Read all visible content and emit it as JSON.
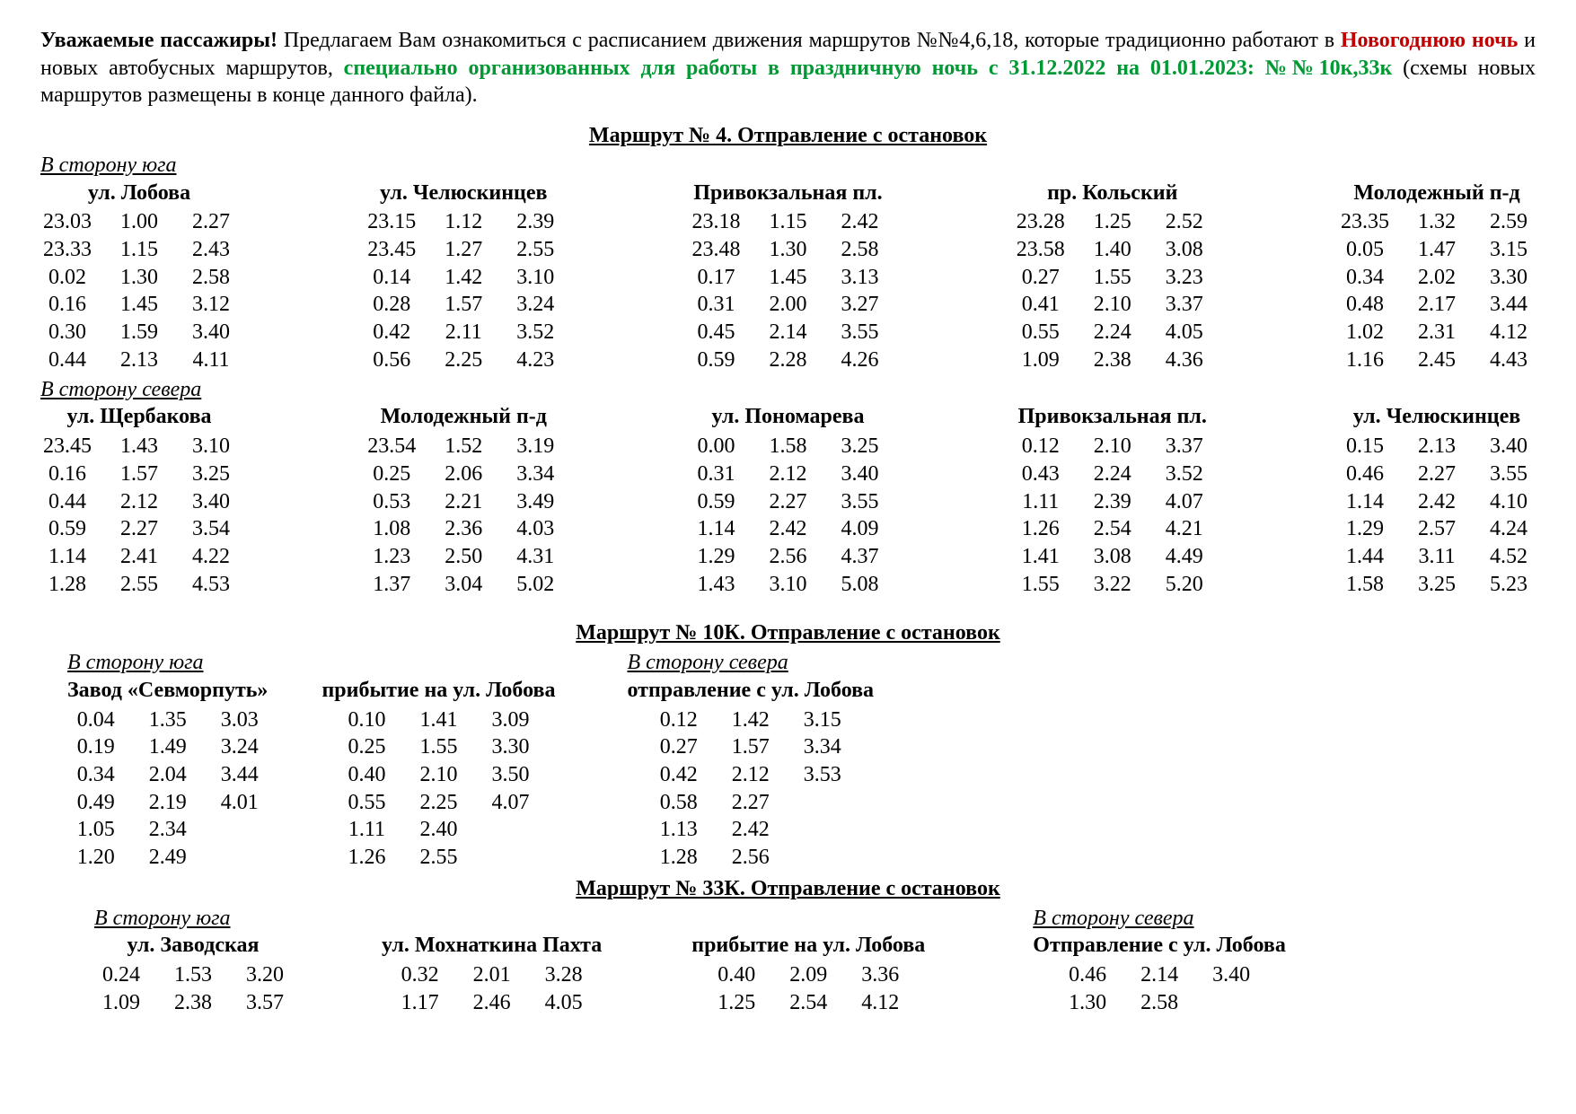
{
  "intro": {
    "lead_bold": "Уважаемые пассажиры!",
    "text_1": " Предлагаем Вам ознакомиться с расписанием движения маршрутов №№4,6,18, которые традиционно работают в ",
    "red_bold": "Новогоднюю ночь",
    "text_2": " и новых автобусных маршрутов, ",
    "green_bold": "специально организованных для работы в праздничную ночь с 31.12.2022 на 01.01.2023:  №№10к,33к",
    "text_3": " (схемы новых маршрутов размещены в конце данного файла)."
  },
  "route4": {
    "title": "Маршрут № 4.  Отправление с остановок",
    "south": {
      "label": "В сторону юга",
      "stops": [
        {
          "name": "ул. Лобова",
          "rows": [
            [
              "23.03",
              "1.00",
              "2.27"
            ],
            [
              "23.33",
              "1.15",
              "2.43"
            ],
            [
              "0.02",
              "1.30",
              "2.58"
            ],
            [
              "0.16",
              "1.45",
              "3.12"
            ],
            [
              "0.30",
              "1.59",
              "3.40"
            ],
            [
              "0.44",
              "2.13",
              "4.11"
            ]
          ]
        },
        {
          "name": "ул. Челюскинцев",
          "rows": [
            [
              "23.15",
              "1.12",
              "2.39"
            ],
            [
              "23.45",
              "1.27",
              "2.55"
            ],
            [
              "0.14",
              "1.42",
              "3.10"
            ],
            [
              "0.28",
              "1.57",
              "3.24"
            ],
            [
              "0.42",
              "2.11",
              "3.52"
            ],
            [
              "0.56",
              "2.25",
              "4.23"
            ]
          ]
        },
        {
          "name": "Привокзальная пл.",
          "rows": [
            [
              "23.18",
              "1.15",
              "2.42"
            ],
            [
              "23.48",
              "1.30",
              "2.58"
            ],
            [
              "0.17",
              "1.45",
              "3.13"
            ],
            [
              "0.31",
              "2.00",
              "3.27"
            ],
            [
              "0.45",
              "2.14",
              "3.55"
            ],
            [
              "0.59",
              "2.28",
              "4.26"
            ]
          ]
        },
        {
          "name": "пр. Кольский",
          "rows": [
            [
              "23.28",
              "1.25",
              "2.52"
            ],
            [
              "23.58",
              "1.40",
              "3.08"
            ],
            [
              "0.27",
              "1.55",
              "3.23"
            ],
            [
              "0.41",
              "2.10",
              "3.37"
            ],
            [
              "0.55",
              "2.24",
              "4.05"
            ],
            [
              "1.09",
              "2.38",
              "4.36"
            ]
          ]
        },
        {
          "name": "Молодежный п-д",
          "rows": [
            [
              "23.35",
              "1.32",
              "2.59"
            ],
            [
              "0.05",
              "1.47",
              "3.15"
            ],
            [
              "0.34",
              "2.02",
              "3.30"
            ],
            [
              "0.48",
              "2.17",
              "3.44"
            ],
            [
              "1.02",
              "2.31",
              "4.12"
            ],
            [
              "1.16",
              "2.45",
              "4.43"
            ]
          ]
        }
      ]
    },
    "north": {
      "label": "В сторону севера",
      "stops": [
        {
          "name": "ул. Щербакова",
          "rows": [
            [
              "23.45",
              "1.43",
              "3.10"
            ],
            [
              "0.16",
              "1.57",
              "3.25"
            ],
            [
              "0.44",
              "2.12",
              "3.40"
            ],
            [
              "0.59",
              "2.27",
              "3.54"
            ],
            [
              "1.14",
              "2.41",
              "4.22"
            ],
            [
              "1.28",
              "2.55",
              "4.53"
            ]
          ]
        },
        {
          "name": "Молодежный п-д",
          "rows": [
            [
              "23.54",
              "1.52",
              "3.19"
            ],
            [
              "0.25",
              "2.06",
              "3.34"
            ],
            [
              "0.53",
              "2.21",
              "3.49"
            ],
            [
              "1.08",
              "2.36",
              "4.03"
            ],
            [
              "1.23",
              "2.50",
              "4.31"
            ],
            [
              "1.37",
              "3.04",
              "5.02"
            ]
          ]
        },
        {
          "name": "ул. Пономарева",
          "rows": [
            [
              "0.00",
              "1.58",
              "3.25"
            ],
            [
              "0.31",
              "2.12",
              "3.40"
            ],
            [
              "0.59",
              "2.27",
              "3.55"
            ],
            [
              "1.14",
              "2.42",
              "4.09"
            ],
            [
              "1.29",
              "2.56",
              "4.37"
            ],
            [
              "1.43",
              "3.10",
              "5.08"
            ]
          ]
        },
        {
          "name": "Привокзальная пл.",
          "rows": [
            [
              "0.12",
              "2.10",
              "3.37"
            ],
            [
              "0.43",
              "2.24",
              "3.52"
            ],
            [
              "1.11",
              "2.39",
              "4.07"
            ],
            [
              "1.26",
              "2.54",
              "4.21"
            ],
            [
              "1.41",
              "3.08",
              "4.49"
            ],
            [
              "1.55",
              "3.22",
              "5.20"
            ]
          ]
        },
        {
          "name": "ул. Челюскинцев",
          "rows": [
            [
              "0.15",
              "2.13",
              "3.40"
            ],
            [
              "0.46",
              "2.27",
              "3.55"
            ],
            [
              "1.14",
              "2.42",
              "4.10"
            ],
            [
              "1.29",
              "2.57",
              "4.24"
            ],
            [
              "1.44",
              "3.11",
              "4.52"
            ],
            [
              "1.58",
              "3.25",
              "5.23"
            ]
          ]
        }
      ]
    }
  },
  "route10k": {
    "title": "Маршрут № 10К.  Отправление с остановок",
    "south_label": "В сторону юга",
    "north_label": "В сторону севера",
    "stops_south": [
      {
        "name": "Завод «Севморпуть»",
        "rows": [
          [
            "0.04",
            "1.35",
            "3.03"
          ],
          [
            "0.19",
            "1.49",
            "3.24"
          ],
          [
            "0.34",
            "2.04",
            "3.44"
          ],
          [
            "0.49",
            "2.19",
            "4.01"
          ],
          [
            "1.05",
            "2.34",
            ""
          ],
          [
            "1.20",
            "2.49",
            ""
          ]
        ]
      },
      {
        "name": "прибытие на ул. Лобова",
        "rows": [
          [
            "0.10",
            "1.41",
            "3.09"
          ],
          [
            "0.25",
            "1.55",
            "3.30"
          ],
          [
            "0.40",
            "2.10",
            "3.50"
          ],
          [
            "0.55",
            "2.25",
            "4.07"
          ],
          [
            "1.11",
            "2.40",
            ""
          ],
          [
            "1.26",
            "2.55",
            ""
          ]
        ]
      }
    ],
    "stops_north": [
      {
        "name": "отправление с ул. Лобова",
        "rows": [
          [
            "0.12",
            "1.42",
            "3.15"
          ],
          [
            "0.27",
            "1.57",
            "3.34"
          ],
          [
            "0.42",
            "2.12",
            "3.53"
          ],
          [
            "0.58",
            "2.27",
            ""
          ],
          [
            "1.13",
            "2.42",
            ""
          ],
          [
            "1.28",
            "2.56",
            ""
          ]
        ]
      }
    ]
  },
  "route33k": {
    "title": "Маршрут № 33К.  Отправление с остановок",
    "south_label": "В сторону юга",
    "north_label": "В сторону севера",
    "stops_south": [
      {
        "name": "ул. Заводская",
        "rows": [
          [
            "0.24",
            "1.53",
            "3.20"
          ],
          [
            "1.09",
            "2.38",
            "3.57"
          ]
        ]
      },
      {
        "name": "ул. Мохнаткина Пахта",
        "rows": [
          [
            "0.32",
            "2.01",
            "3.28"
          ],
          [
            "1.17",
            "2.46",
            "4.05"
          ]
        ]
      },
      {
        "name": "прибытие на ул. Лобова",
        "rows": [
          [
            "0.40",
            "2.09",
            "3.36"
          ],
          [
            "1.25",
            "2.54",
            "4.12"
          ]
        ]
      }
    ],
    "stops_north": [
      {
        "name": "Отправление с ул. Лобова",
        "rows": [
          [
            "0.46",
            "2.14",
            "3.40"
          ],
          [
            "1.30",
            "2.58",
            ""
          ]
        ]
      }
    ]
  },
  "colors": {
    "text": "#000000",
    "background": "#ffffff",
    "red": "#c00000",
    "green": "#009933"
  },
  "typography": {
    "font_family": "Times New Roman",
    "base_size_pt": 18
  }
}
